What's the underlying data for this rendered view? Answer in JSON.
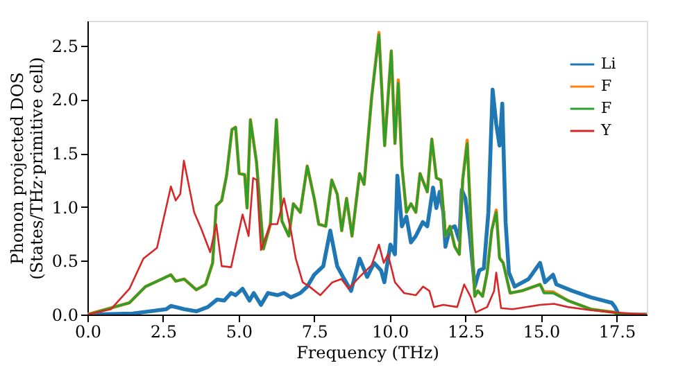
{
  "chart_data": {
    "type": "line",
    "xlabel": "Frequency (THz)",
    "ylabel": "Phonon projected DOS\n(States/THz·primitive cell)",
    "xlim": [
      0,
      18.5
    ],
    "ylim": [
      0,
      2.73
    ],
    "xticks": [
      {
        "value": 0,
        "label": "0.0"
      },
      {
        "value": 2.5,
        "label": "2.5"
      },
      {
        "value": 5,
        "label": "5.0"
      },
      {
        "value": 7.5,
        "label": "7.5"
      },
      {
        "value": 10,
        "label": "10.0"
      },
      {
        "value": 12.5,
        "label": "12.5"
      },
      {
        "value": 15,
        "label": "15.0"
      },
      {
        "value": 17.5,
        "label": "17.5"
      }
    ],
    "yticks": [
      {
        "value": 0,
        "label": "0.0"
      },
      {
        "value": 0.5,
        "label": "0.5"
      },
      {
        "value": 1,
        "label": "1.0"
      },
      {
        "value": 1.5,
        "label": "1.5"
      },
      {
        "value": 2,
        "label": "2.0"
      },
      {
        "value": 2.5,
        "label": "2.5"
      }
    ],
    "grid": false,
    "legend": "top right",
    "line_style": "solid",
    "marker": "none",
    "series": [
      {
        "name": "Li",
        "color": "#1f77b4",
        "x": [
          0,
          1.5,
          2.61,
          2.76,
          3.2,
          3.6,
          3.98,
          4.29,
          4.52,
          4.75,
          4.9,
          5.13,
          5.36,
          5.5,
          5.74,
          5.97,
          6.28,
          6.5,
          6.73,
          7.04,
          7.27,
          7.5,
          7.8,
          8.03,
          8.26,
          8.49,
          8.72,
          9.0,
          9.25,
          9.48,
          9.71,
          9.82,
          10.02,
          10.17,
          10.25,
          10.4,
          10.55,
          10.7,
          10.86,
          11.09,
          11.24,
          11.43,
          11.54,
          11.65,
          11.77,
          11.84,
          11.99,
          12.15,
          12.3,
          12.38,
          12.5,
          12.65,
          12.81,
          12.96,
          13.11,
          13.26,
          13.4,
          13.52,
          13.63,
          13.72,
          13.83,
          13.94,
          14.13,
          14.59,
          14.97,
          15.13,
          15.4,
          15.51,
          16.04,
          16.65,
          17.34,
          17.45,
          17.57,
          18.5
        ],
        "values": [
          0,
          0.01,
          0.05,
          0.08,
          0.05,
          0.03,
          0.07,
          0.14,
          0.13,
          0.2,
          0.18,
          0.24,
          0.13,
          0.2,
          0.09,
          0.2,
          0.18,
          0.2,
          0.16,
          0.2,
          0.26,
          0.37,
          0.45,
          0.78,
          0.45,
          0.33,
          0.22,
          0.52,
          0.35,
          0.48,
          0.41,
          0.3,
          0.65,
          0.56,
          1.29,
          0.82,
          0.91,
          0.67,
          0.73,
          0.86,
          0.82,
          1.18,
          0.99,
          1.14,
          0.95,
          0.63,
          0.8,
          0.82,
          0.69,
          1.16,
          1.08,
          0.73,
          0.26,
          0.41,
          0.43,
          0.95,
          2.09,
          1.77,
          1.57,
          1.96,
          0.86,
          0.39,
          0.26,
          0.33,
          0.48,
          0.3,
          0.37,
          0.28,
          0.22,
          0.16,
          0.11,
          0.07,
          0,
          0
        ]
      },
      {
        "name": "F",
        "color": "#ff7f0e",
        "x": [
          0,
          1.39,
          1.92,
          2.46,
          2.76,
          2.92,
          3.2,
          3.6,
          3.91,
          4.14,
          4.26,
          4.44,
          4.6,
          4.78,
          4.9,
          5.02,
          5.2,
          5.28,
          5.39,
          5.59,
          5.82,
          6.05,
          6.25,
          6.43,
          6.66,
          6.81,
          7.04,
          7.27,
          7.5,
          7.65,
          7.88,
          8.08,
          8.26,
          8.41,
          8.57,
          8.75,
          9.0,
          9.15,
          9.4,
          9.64,
          9.83,
          10.05,
          10.17,
          10.28,
          10.4,
          10.55,
          10.7,
          10.86,
          11.0,
          11.24,
          11.39,
          11.54,
          11.69,
          11.84,
          11.99,
          12.15,
          12.3,
          12.41,
          12.56,
          12.68,
          12.81,
          12.91,
          13.07,
          13.22,
          13.37,
          13.52,
          13.63,
          13.75,
          13.98,
          14.36,
          14.97,
          15.1,
          15.4,
          15.89,
          16.65,
          17.42,
          17.57,
          18.5
        ],
        "values": [
          0,
          0.11,
          0.26,
          0.33,
          0.37,
          0.31,
          0.33,
          0.23,
          0.28,
          0.48,
          1.01,
          1.06,
          1.29,
          1.72,
          1.74,
          1.31,
          1.3,
          0.99,
          1.81,
          1.42,
          0.61,
          0.84,
          1.81,
          0.87,
          0.73,
          1.03,
          0.95,
          1.38,
          1.08,
          0.84,
          0.82,
          1.25,
          1.12,
          0.78,
          1.08,
          0.73,
          1.31,
          1.21,
          2.02,
          2.62,
          1.57,
          2.45,
          1.59,
          2.18,
          1.38,
          0.95,
          1.03,
          0.95,
          1.31,
          1.14,
          1.63,
          1.27,
          1.25,
          0.73,
          0.82,
          0.63,
          0.56,
          1.25,
          1.62,
          0.86,
          0.17,
          0.22,
          0.17,
          0.39,
          0.78,
          0.97,
          0.53,
          0.48,
          0.2,
          0.22,
          0.28,
          0.21,
          0.21,
          0.13,
          0.05,
          0.02,
          0,
          0
        ]
      },
      {
        "name": "F",
        "color": "#2ca02c",
        "x": [
          0,
          1.39,
          1.92,
          2.46,
          2.76,
          2.92,
          3.2,
          3.6,
          3.91,
          4.14,
          4.26,
          4.44,
          4.6,
          4.78,
          4.9,
          5.02,
          5.2,
          5.28,
          5.39,
          5.59,
          5.82,
          6.05,
          6.25,
          6.43,
          6.66,
          6.81,
          7.04,
          7.27,
          7.5,
          7.65,
          7.88,
          8.08,
          8.26,
          8.41,
          8.57,
          8.75,
          9.0,
          9.15,
          9.4,
          9.64,
          9.83,
          10.05,
          10.17,
          10.28,
          10.4,
          10.55,
          10.7,
          10.86,
          11.0,
          11.24,
          11.39,
          11.54,
          11.69,
          11.84,
          11.99,
          12.15,
          12.3,
          12.41,
          12.56,
          12.68,
          12.81,
          12.91,
          13.07,
          13.22,
          13.37,
          13.52,
          13.63,
          13.75,
          13.98,
          14.36,
          14.97,
          15.1,
          15.4,
          15.89,
          16.65,
          17.42,
          17.57,
          18.5
        ],
        "values": [
          0,
          0.11,
          0.26,
          0.33,
          0.37,
          0.31,
          0.33,
          0.23,
          0.28,
          0.48,
          1.01,
          1.06,
          1.29,
          1.72,
          1.74,
          1.31,
          1.3,
          0.99,
          1.81,
          1.42,
          0.61,
          0.84,
          1.81,
          0.87,
          0.73,
          1.03,
          0.95,
          1.38,
          1.08,
          0.84,
          0.82,
          1.25,
          1.12,
          0.78,
          1.08,
          0.73,
          1.31,
          1.21,
          2.02,
          2.6,
          1.57,
          2.45,
          1.59,
          2.15,
          1.38,
          0.95,
          1.03,
          0.95,
          1.31,
          1.14,
          1.63,
          1.27,
          1.25,
          0.73,
          0.82,
          0.63,
          0.56,
          1.25,
          1.59,
          0.86,
          0.17,
          0.22,
          0.17,
          0.39,
          0.78,
          0.95,
          0.52,
          0.48,
          0.2,
          0.22,
          0.28,
          0.2,
          0.2,
          0.13,
          0.05,
          0.02,
          0,
          0
        ]
      },
      {
        "name": "Y",
        "color": "#d62728",
        "x": [
          0,
          0.78,
          1.39,
          1.85,
          2.3,
          2.76,
          2.92,
          3.07,
          3.19,
          3.53,
          3.76,
          4.06,
          4.26,
          4.44,
          4.75,
          5.13,
          5.33,
          5.48,
          5.6,
          5.74,
          6.05,
          6.28,
          6.5,
          6.73,
          6.89,
          7.12,
          7.34,
          7.7,
          8.1,
          8.4,
          8.64,
          9.0,
          9.4,
          9.64,
          9.8,
          9.94,
          10.17,
          10.47,
          10.86,
          11.1,
          11.31,
          11.46,
          11.77,
          12.23,
          12.46,
          12.68,
          12.84,
          13.22,
          13.45,
          13.52,
          13.68,
          14.06,
          14.97,
          15.43,
          15.89,
          16.65,
          17.42,
          18.5
        ],
        "values": [
          0,
          0.05,
          0.24,
          0.52,
          0.62,
          1.19,
          1.06,
          1.12,
          1.43,
          0.95,
          0.8,
          0.58,
          0.84,
          0.45,
          0.44,
          0.93,
          0.73,
          1.27,
          1.25,
          0.6,
          0.84,
          0.84,
          1.08,
          0.78,
          0.52,
          0.3,
          0.26,
          0.18,
          0.3,
          0.33,
          0.24,
          0.35,
          0.46,
          0.65,
          0.48,
          0.56,
          0.3,
          0.2,
          0.18,
          0.26,
          0.22,
          0.07,
          0.09,
          0.07,
          0.28,
          0.16,
          0.02,
          0.07,
          0.22,
          0.39,
          0.06,
          0.05,
          0.09,
          0.1,
          0.07,
          0.04,
          0.02,
          0
        ]
      }
    ]
  }
}
